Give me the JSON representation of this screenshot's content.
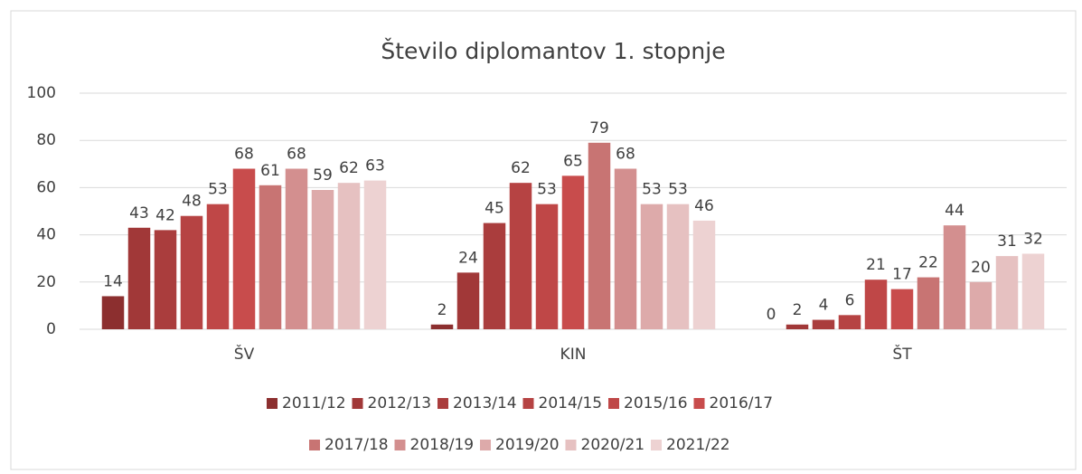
{
  "chart_data": {
    "type": "bar",
    "title": "Število diplomantov 1. stopnje",
    "categories": [
      "ŠV",
      "KIN",
      "ŠT"
    ],
    "series": [
      {
        "name": "2011/12",
        "color": "#8c2f2f",
        "values": [
          14,
          2,
          0
        ]
      },
      {
        "name": "2012/13",
        "color": "#a13838",
        "values": [
          43,
          24,
          2
        ]
      },
      {
        "name": "2013/14",
        "color": "#aa3d3d",
        "values": [
          42,
          45,
          4
        ]
      },
      {
        "name": "2014/15",
        "color": "#b64343",
        "values": [
          48,
          62,
          6
        ]
      },
      {
        "name": "2015/16",
        "color": "#bf4747",
        "values": [
          53,
          53,
          21
        ]
      },
      {
        "name": "2016/17",
        "color": "#c84c4c",
        "values": [
          68,
          65,
          17
        ]
      },
      {
        "name": "2017/18",
        "color": "#c87473",
        "values": [
          61,
          79,
          22
        ]
      },
      {
        "name": "2018/19",
        "color": "#d38f8f",
        "values": [
          68,
          68,
          44
        ]
      },
      {
        "name": "2019/20",
        "color": "#ddaaaa",
        "values": [
          59,
          53,
          20
        ]
      },
      {
        "name": "2020/21",
        "color": "#e6c1c1",
        "values": [
          62,
          53,
          31
        ]
      },
      {
        "name": "2021/22",
        "color": "#edd2d2",
        "values": [
          63,
          46,
          32
        ]
      }
    ],
    "ylim": [
      0,
      100
    ],
    "yticks": [
      0,
      20,
      40,
      60,
      80,
      100
    ],
    "grid": true,
    "legend": "bottom"
  }
}
